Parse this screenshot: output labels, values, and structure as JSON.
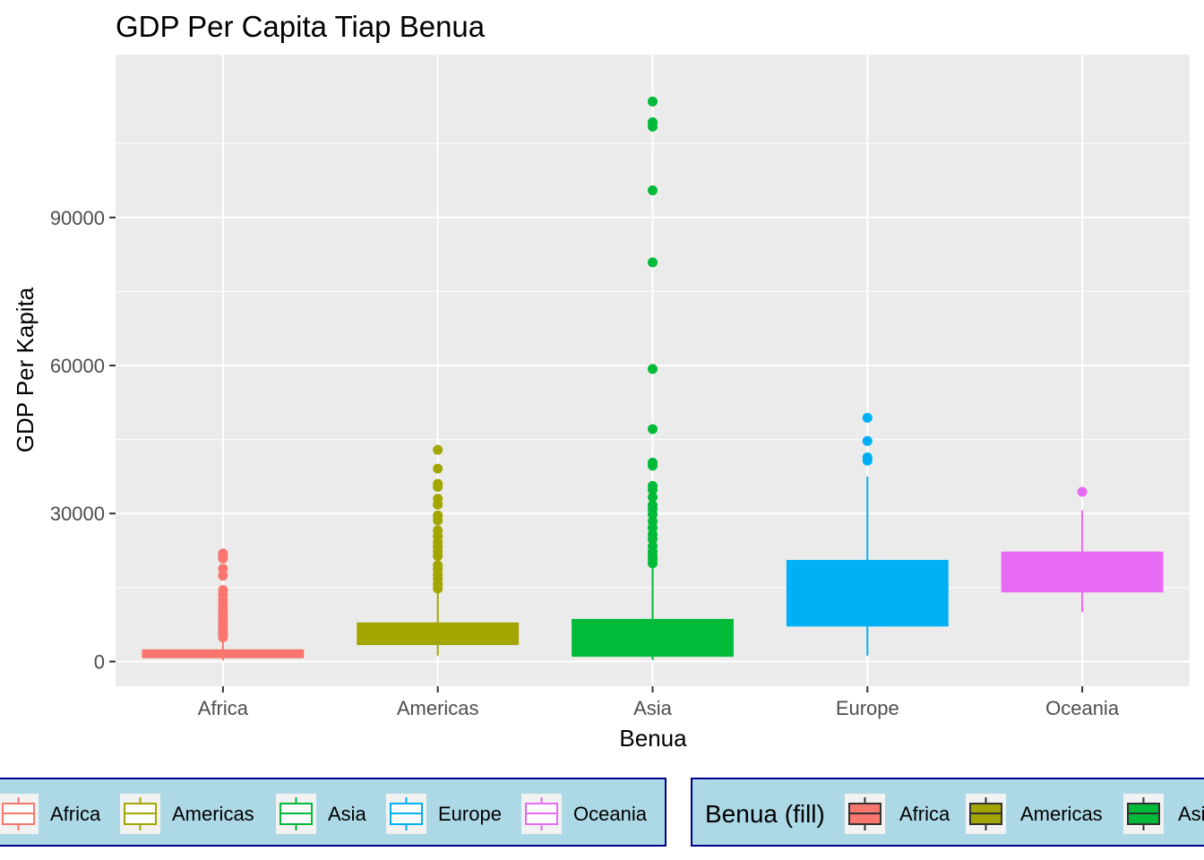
{
  "chart_data": {
    "type": "box",
    "title": "GDP Per Capita Tiap Benua",
    "xlabel": "Benua",
    "ylabel": "GDP Per Kapita",
    "ylim": [
      -5000,
      123000
    ],
    "yticks": [
      0,
      30000,
      60000,
      90000
    ],
    "ytick_labels": [
      "0",
      "30000",
      "60000",
      "90000"
    ],
    "grid": true,
    "legend_placement": "bottom",
    "categories": [
      "Africa",
      "Americas",
      "Asia",
      "Europe",
      "Oceania"
    ],
    "boxes": [
      {
        "name": "Africa",
        "color": "#F8766D",
        "whisker_low": 240,
        "q1": 760,
        "median": 1190,
        "q3": 2380,
        "whisker_high": 5800,
        "outliers": [
          4900,
          5300,
          5700,
          6100,
          6600,
          7100,
          7700,
          8300,
          9000,
          9800,
          10700,
          11500,
          12500,
          13400,
          14500,
          17400,
          18800,
          20900,
          21500,
          21900
        ]
      },
      {
        "name": "Americas",
        "color": "#A3A500",
        "whisker_low": 1200,
        "q1": 3430,
        "median": 5460,
        "q3": 7830,
        "whisker_high": 14400,
        "outliers": [
          14800,
          15700,
          16800,
          17600,
          18700,
          19500,
          21400,
          22300,
          23300,
          24200,
          25400,
          26600,
          28600,
          29600,
          31800,
          33000,
          35400,
          36000,
          39100,
          42900
        ]
      },
      {
        "name": "Asia",
        "color": "#00BA38",
        "whisker_low": 330,
        "q1": 1060,
        "median": 2650,
        "q3": 8550,
        "whisker_high": 19600,
        "outliers": [
          19900,
          20700,
          21400,
          22300,
          23400,
          24800,
          25800,
          27100,
          28400,
          29800,
          30900,
          31700,
          33300,
          34800,
          35600,
          39700,
          40300,
          47100,
          59300,
          80900,
          95500,
          108400,
          109300,
          113500
        ]
      },
      {
        "name": "Europe",
        "color": "#00B0F6",
        "whisker_low": 1200,
        "q1": 7200,
        "median": 12100,
        "q3": 20500,
        "whisker_high": 37500,
        "outliers": [
          40700,
          41400,
          44700,
          49400
        ]
      },
      {
        "name": "Oceania",
        "color": "#E76BF3",
        "whisker_low": 10000,
        "q1": 14100,
        "median": 17900,
        "q3": 22200,
        "whisker_high": 30700,
        "outliers": [
          34400
        ]
      }
    ]
  },
  "legend_color": {
    "border_color": "#00008B",
    "background": "#ADD8E6",
    "items": [
      {
        "label": "Africa",
        "color": "#F8766D"
      },
      {
        "label": "Americas",
        "color": "#A3A500"
      },
      {
        "label": "Asia",
        "color": "#00BA38"
      },
      {
        "label": "Europe",
        "color": "#00B0F6"
      },
      {
        "label": "Oceania",
        "color": "#E76BF3"
      }
    ]
  },
  "legend_fill": {
    "title": "Benua (fill)",
    "border_color": "#00008B",
    "background": "#ADD8E6",
    "items": [
      {
        "label": "Africa",
        "color": "#F8766D"
      },
      {
        "label": "Americas",
        "color": "#A3A500"
      },
      {
        "label": "Asi",
        "color": "#00BA38"
      }
    ]
  }
}
